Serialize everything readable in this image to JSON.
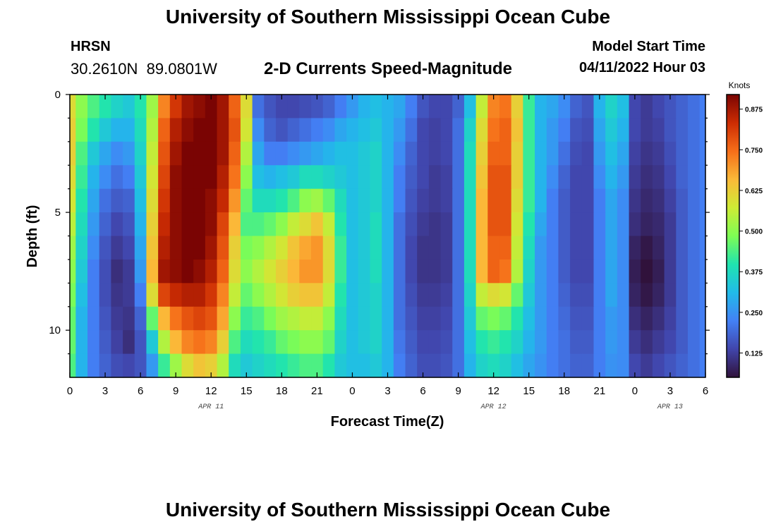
{
  "header": {
    "title": "University of Southern Mississippi Ocean Cube",
    "station": "HRSN",
    "coordinates": "30.2610N  89.0801W",
    "subtitle": "2-D Currents Speed-Magnitude",
    "model_start_label": "Model Start Time",
    "model_start_value": "04/11/2022 Hour 03"
  },
  "footer": {
    "title": "University of Southern Mississippi Ocean Cube"
  },
  "chart_data": {
    "type": "heatmap",
    "title": "2-D Currents Speed-Magnitude",
    "xlabel": "Forecast Time(Z)",
    "ylabel": "Depth (ft)",
    "x_range_hours": [
      0,
      54
    ],
    "x_tick_labels": [
      "0",
      "3",
      "6",
      "9",
      "12",
      "15",
      "18",
      "21",
      "0",
      "3",
      "6",
      "9",
      "12",
      "15",
      "18",
      "21",
      "0",
      "3",
      "6"
    ],
    "x_tick_hours": [
      0,
      3,
      6,
      9,
      12,
      15,
      18,
      21,
      24,
      27,
      30,
      33,
      36,
      39,
      42,
      45,
      48,
      51,
      54
    ],
    "date_labels": [
      {
        "hour": 12,
        "label": "APR 11"
      },
      {
        "hour": 36,
        "label": "APR 12"
      },
      {
        "hour": 51,
        "label": "APR 13"
      }
    ],
    "y_range_ft": [
      0,
      12
    ],
    "y_ticks": [
      0,
      5,
      10
    ],
    "y_tick_labels": [
      "0",
      "5",
      "10"
    ],
    "colorbar": {
      "label": "Knots",
      "min": 0.05,
      "max": 0.92,
      "ticks": [
        0.125,
        0.25,
        0.375,
        0.5,
        0.625,
        0.75,
        0.875
      ],
      "tick_labels": [
        "0.125",
        "0.250",
        "0.375",
        "0.500",
        "0.625",
        "0.750",
        "0.875"
      ]
    },
    "depth_levels_ft": [
      0.5,
      1.5,
      2.5,
      3.5,
      4.5,
      5.5,
      6.5,
      7.5,
      8.5,
      9.5,
      10.5,
      11.5
    ],
    "time_hours": [
      0,
      1,
      2,
      3,
      4,
      5,
      6,
      7,
      8,
      9,
      10,
      11,
      12,
      13,
      14,
      15,
      16,
      17,
      18,
      19,
      20,
      21,
      22,
      23,
      24,
      25,
      26,
      27,
      28,
      29,
      30,
      31,
      32,
      33,
      34,
      35,
      36,
      37,
      38,
      39,
      40,
      41,
      42,
      43,
      44,
      45,
      46,
      47,
      48,
      49,
      50,
      51,
      52,
      53,
      54
    ],
    "speed_knots": [
      [
        0.6,
        0.5,
        0.44,
        0.4,
        0.36,
        0.34,
        0.4,
        0.52,
        0.72,
        0.82,
        0.88,
        0.9,
        0.92,
        0.88,
        0.76,
        0.6,
        0.2,
        0.16,
        0.14,
        0.14,
        0.15,
        0.16,
        0.18,
        0.22,
        0.26,
        0.3,
        0.32,
        0.3,
        0.28,
        0.22,
        0.16,
        0.14,
        0.14,
        0.18,
        0.32,
        0.56,
        0.72,
        0.74,
        0.62,
        0.42,
        0.3,
        0.28,
        0.24,
        0.18,
        0.16,
        0.3,
        0.36,
        0.32,
        0.14,
        0.12,
        0.14,
        0.16,
        0.18,
        0.2,
        0.22
      ],
      [
        0.62,
        0.48,
        0.4,
        0.34,
        0.3,
        0.3,
        0.38,
        0.54,
        0.76,
        0.86,
        0.9,
        0.92,
        0.92,
        0.88,
        0.78,
        0.58,
        0.24,
        0.18,
        0.16,
        0.18,
        0.2,
        0.22,
        0.24,
        0.28,
        0.3,
        0.32,
        0.34,
        0.3,
        0.26,
        0.2,
        0.14,
        0.13,
        0.14,
        0.2,
        0.36,
        0.6,
        0.74,
        0.76,
        0.64,
        0.42,
        0.3,
        0.26,
        0.22,
        0.16,
        0.15,
        0.28,
        0.34,
        0.3,
        0.14,
        0.12,
        0.13,
        0.16,
        0.18,
        0.2,
        0.22
      ],
      [
        0.62,
        0.44,
        0.34,
        0.28,
        0.24,
        0.26,
        0.36,
        0.56,
        0.78,
        0.88,
        0.92,
        0.92,
        0.92,
        0.88,
        0.76,
        0.54,
        0.28,
        0.22,
        0.22,
        0.24,
        0.26,
        0.28,
        0.3,
        0.32,
        0.32,
        0.34,
        0.36,
        0.3,
        0.24,
        0.18,
        0.14,
        0.13,
        0.14,
        0.2,
        0.38,
        0.62,
        0.76,
        0.76,
        0.62,
        0.42,
        0.3,
        0.26,
        0.2,
        0.15,
        0.14,
        0.26,
        0.32,
        0.28,
        0.13,
        0.11,
        0.12,
        0.15,
        0.18,
        0.2,
        0.22
      ],
      [
        0.6,
        0.42,
        0.3,
        0.24,
        0.2,
        0.22,
        0.34,
        0.58,
        0.8,
        0.9,
        0.92,
        0.92,
        0.92,
        0.86,
        0.74,
        0.5,
        0.32,
        0.3,
        0.32,
        0.34,
        0.38,
        0.38,
        0.36,
        0.34,
        0.32,
        0.34,
        0.36,
        0.3,
        0.22,
        0.17,
        0.14,
        0.12,
        0.13,
        0.2,
        0.38,
        0.64,
        0.78,
        0.78,
        0.62,
        0.42,
        0.3,
        0.24,
        0.18,
        0.14,
        0.14,
        0.24,
        0.3,
        0.26,
        0.12,
        0.1,
        0.11,
        0.14,
        0.18,
        0.2,
        0.22
      ],
      [
        0.58,
        0.4,
        0.28,
        0.2,
        0.17,
        0.18,
        0.32,
        0.6,
        0.82,
        0.9,
        0.92,
        0.92,
        0.9,
        0.84,
        0.7,
        0.46,
        0.38,
        0.38,
        0.4,
        0.44,
        0.5,
        0.52,
        0.46,
        0.38,
        0.32,
        0.34,
        0.36,
        0.3,
        0.22,
        0.16,
        0.13,
        0.12,
        0.13,
        0.2,
        0.38,
        0.66,
        0.78,
        0.78,
        0.6,
        0.42,
        0.3,
        0.22,
        0.17,
        0.14,
        0.14,
        0.22,
        0.28,
        0.24,
        0.11,
        0.09,
        0.1,
        0.13,
        0.17,
        0.2,
        0.22
      ],
      [
        0.55,
        0.38,
        0.26,
        0.18,
        0.14,
        0.16,
        0.3,
        0.62,
        0.84,
        0.9,
        0.92,
        0.92,
        0.9,
        0.8,
        0.66,
        0.44,
        0.44,
        0.46,
        0.5,
        0.56,
        0.6,
        0.64,
        0.56,
        0.4,
        0.32,
        0.34,
        0.38,
        0.3,
        0.2,
        0.15,
        0.12,
        0.11,
        0.12,
        0.2,
        0.38,
        0.66,
        0.78,
        0.78,
        0.58,
        0.4,
        0.28,
        0.22,
        0.17,
        0.14,
        0.14,
        0.22,
        0.28,
        0.24,
        0.1,
        0.08,
        0.09,
        0.12,
        0.17,
        0.2,
        0.22
      ],
      [
        0.52,
        0.36,
        0.24,
        0.16,
        0.12,
        0.14,
        0.28,
        0.64,
        0.86,
        0.9,
        0.92,
        0.92,
        0.88,
        0.78,
        0.62,
        0.48,
        0.5,
        0.54,
        0.58,
        0.64,
        0.68,
        0.7,
        0.6,
        0.42,
        0.32,
        0.34,
        0.38,
        0.3,
        0.2,
        0.14,
        0.11,
        0.11,
        0.12,
        0.2,
        0.38,
        0.66,
        0.76,
        0.76,
        0.56,
        0.38,
        0.26,
        0.22,
        0.17,
        0.14,
        0.14,
        0.22,
        0.28,
        0.24,
        0.08,
        0.06,
        0.08,
        0.12,
        0.17,
        0.2,
        0.22
      ],
      [
        0.5,
        0.34,
        0.22,
        0.15,
        0.1,
        0.12,
        0.26,
        0.66,
        0.88,
        0.9,
        0.92,
        0.9,
        0.86,
        0.76,
        0.6,
        0.5,
        0.54,
        0.58,
        0.62,
        0.66,
        0.7,
        0.7,
        0.6,
        0.42,
        0.32,
        0.34,
        0.38,
        0.3,
        0.2,
        0.14,
        0.11,
        0.11,
        0.12,
        0.2,
        0.38,
        0.66,
        0.76,
        0.74,
        0.54,
        0.36,
        0.26,
        0.22,
        0.17,
        0.14,
        0.14,
        0.22,
        0.28,
        0.24,
        0.07,
        0.05,
        0.07,
        0.12,
        0.17,
        0.2,
        0.22
      ],
      [
        0.48,
        0.32,
        0.22,
        0.15,
        0.11,
        0.12,
        0.22,
        0.6,
        0.8,
        0.84,
        0.86,
        0.86,
        0.82,
        0.72,
        0.56,
        0.46,
        0.5,
        0.54,
        0.58,
        0.62,
        0.64,
        0.64,
        0.56,
        0.4,
        0.32,
        0.34,
        0.36,
        0.3,
        0.2,
        0.15,
        0.12,
        0.12,
        0.13,
        0.2,
        0.36,
        0.56,
        0.6,
        0.58,
        0.46,
        0.34,
        0.26,
        0.22,
        0.18,
        0.15,
        0.15,
        0.22,
        0.28,
        0.24,
        0.08,
        0.06,
        0.08,
        0.12,
        0.17,
        0.2,
        0.22
      ],
      [
        0.46,
        0.3,
        0.22,
        0.16,
        0.12,
        0.11,
        0.18,
        0.46,
        0.66,
        0.74,
        0.78,
        0.8,
        0.78,
        0.68,
        0.5,
        0.42,
        0.44,
        0.48,
        0.52,
        0.54,
        0.56,
        0.56,
        0.5,
        0.38,
        0.32,
        0.34,
        0.36,
        0.3,
        0.2,
        0.16,
        0.13,
        0.13,
        0.14,
        0.2,
        0.34,
        0.46,
        0.48,
        0.46,
        0.4,
        0.32,
        0.26,
        0.22,
        0.19,
        0.16,
        0.16,
        0.22,
        0.26,
        0.24,
        0.1,
        0.08,
        0.1,
        0.13,
        0.17,
        0.2,
        0.22
      ],
      [
        0.46,
        0.3,
        0.22,
        0.17,
        0.13,
        0.1,
        0.16,
        0.34,
        0.54,
        0.66,
        0.72,
        0.74,
        0.72,
        0.62,
        0.44,
        0.38,
        0.4,
        0.42,
        0.46,
        0.48,
        0.5,
        0.5,
        0.46,
        0.36,
        0.32,
        0.34,
        0.36,
        0.3,
        0.21,
        0.17,
        0.14,
        0.14,
        0.15,
        0.2,
        0.32,
        0.4,
        0.42,
        0.4,
        0.36,
        0.3,
        0.26,
        0.22,
        0.2,
        0.17,
        0.17,
        0.22,
        0.26,
        0.24,
        0.12,
        0.1,
        0.12,
        0.14,
        0.17,
        0.2,
        0.22
      ],
      [
        0.44,
        0.3,
        0.22,
        0.18,
        0.15,
        0.14,
        0.16,
        0.26,
        0.42,
        0.52,
        0.6,
        0.64,
        0.62,
        0.54,
        0.38,
        0.34,
        0.36,
        0.38,
        0.4,
        0.42,
        0.44,
        0.44,
        0.4,
        0.34,
        0.32,
        0.32,
        0.34,
        0.3,
        0.22,
        0.18,
        0.15,
        0.15,
        0.16,
        0.2,
        0.3,
        0.36,
        0.38,
        0.36,
        0.32,
        0.28,
        0.25,
        0.22,
        0.2,
        0.18,
        0.18,
        0.22,
        0.25,
        0.24,
        0.14,
        0.12,
        0.14,
        0.16,
        0.18,
        0.2,
        0.22
      ]
    ]
  }
}
